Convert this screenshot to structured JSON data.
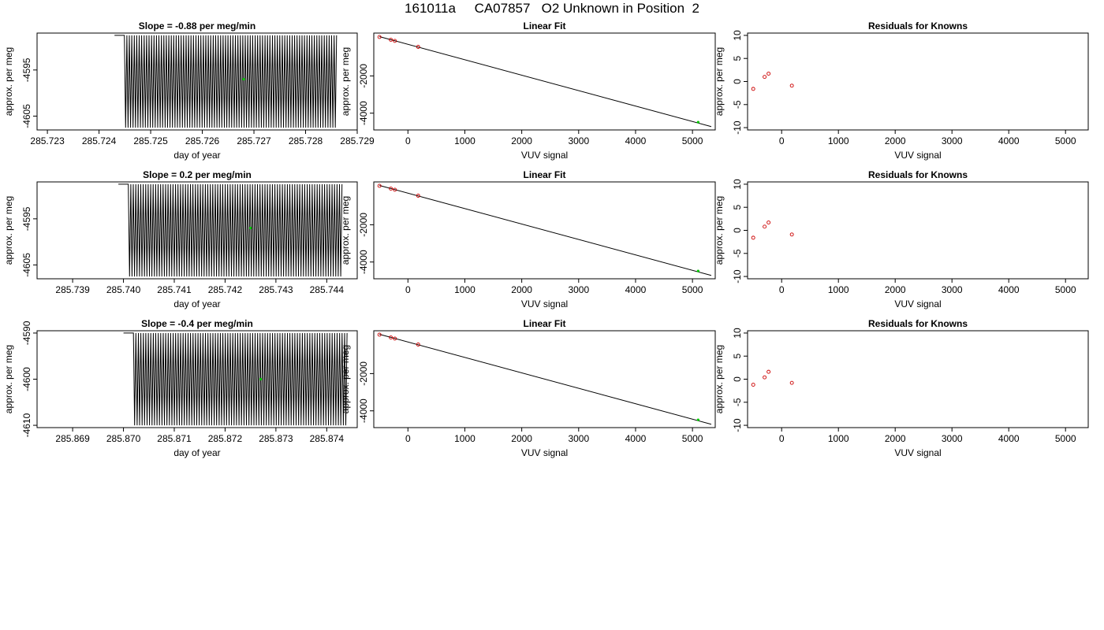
{
  "page_title": "161011a     CA07857   O2 Unknown in Position  2",
  "colors": {
    "trace": "#000000",
    "known_points": "#cc0000",
    "unknown_point": "#00cc00",
    "fit_line": "#000000"
  },
  "chart_data": [
    {
      "type": "line",
      "panel": "time-series-1",
      "title": "Slope =  -0.88  per meg/min",
      "xlabel": "day of year",
      "ylabel": "approx. per meg",
      "xticks": [
        "285.723",
        "285.724",
        "285.725",
        "285.726",
        "285.727",
        "285.728",
        "285.729"
      ],
      "yticks": [
        "-4595",
        "-4605"
      ],
      "xlim": [
        285.7228,
        285.729
      ],
      "ylim": [
        -4608,
        -4587
      ],
      "series": [
        {
          "trace": {
            "x_start": 285.7243,
            "x_end": 285.7286,
            "cycles": 90,
            "y_high": -4587.5,
            "y_low": -4607.5,
            "flat_until": 285.7245
          }
        }
      ],
      "unknown_point": {
        "x": 285.7268,
        "y": -4597
      }
    },
    {
      "type": "line",
      "panel": "time-series-2",
      "title": "Slope =  0.2  per meg/min",
      "xlabel": "day of year",
      "ylabel": "approx. per meg",
      "xticks": [
        "285.739",
        "285.740",
        "285.741",
        "285.742",
        "285.743",
        "285.744"
      ],
      "yticks": [
        "-4595",
        "-4605"
      ],
      "xlim": [
        285.7383,
        285.7446
      ],
      "ylim": [
        -4608,
        -4587
      ],
      "series": [
        {
          "trace": {
            "x_start": 285.7399,
            "x_end": 285.7443,
            "cycles": 90,
            "y_high": -4587.5,
            "y_low": -4607.5,
            "flat_until": 285.7401
          }
        }
      ],
      "unknown_point": {
        "x": 285.7425,
        "y": -4597
      }
    },
    {
      "type": "line",
      "panel": "time-series-3",
      "title": "Slope =  -0.4  per meg/min",
      "xlabel": "day of year",
      "ylabel": "approx. per meg",
      "xticks": [
        "285.869",
        "285.870",
        "285.871",
        "285.872",
        "285.873",
        "285.874"
      ],
      "yticks": [
        "-4590",
        "-4600",
        "-4610"
      ],
      "xlim": [
        285.8683,
        285.8746
      ],
      "ylim": [
        -4610.5,
        -4589.5
      ],
      "series": [
        {
          "trace": {
            "x_start": 285.87,
            "x_end": 285.8744,
            "cycles": 90,
            "y_high": -4590,
            "y_low": -4610,
            "flat_until": 285.8702
          }
        }
      ],
      "unknown_point": {
        "x": 285.8727,
        "y": -4600
      }
    },
    {
      "type": "scatter",
      "panel": "linear-fit-1",
      "title": "Linear Fit",
      "xlabel": "VUV signal",
      "ylabel": "approx. per meg",
      "xticks": [
        0,
        1000,
        2000,
        3000,
        4000,
        5000
      ],
      "yticks": [
        -2000,
        -4000
      ],
      "xlim": [
        -600,
        5400
      ],
      "ylim": [
        -4900,
        300
      ],
      "known": {
        "x": [
          -500,
          -300,
          -230,
          180
        ],
        "y": [
          90,
          -60,
          -120,
          -440
        ]
      },
      "unknown": {
        "x": [
          5100
        ],
        "y": [
          -4480
        ]
      },
      "fit_line": {
        "x": [
          -500,
          5330
        ],
        "y": [
          110,
          -4720
        ]
      }
    },
    {
      "type": "scatter",
      "panel": "linear-fit-2",
      "title": "Linear Fit",
      "xlabel": "VUV signal",
      "ylabel": "approx. per meg",
      "xticks": [
        0,
        1000,
        2000,
        3000,
        4000,
        5000
      ],
      "yticks": [
        -2000,
        -4000
      ],
      "xlim": [
        -600,
        5400
      ],
      "ylim": [
        -4900,
        300
      ],
      "known": {
        "x": [
          -500,
          -300,
          -230,
          180
        ],
        "y": [
          90,
          -60,
          -120,
          -440
        ]
      },
      "unknown": {
        "x": [
          5100
        ],
        "y": [
          -4480
        ]
      },
      "fit_line": {
        "x": [
          -500,
          5330
        ],
        "y": [
          110,
          -4720
        ]
      }
    },
    {
      "type": "scatter",
      "panel": "linear-fit-3",
      "title": "Linear Fit",
      "xlabel": "VUV signal",
      "ylabel": "approx. per meg",
      "xticks": [
        0,
        1000,
        2000,
        3000,
        4000,
        5000
      ],
      "yticks": [
        -2000,
        -4000
      ],
      "xlim": [
        -600,
        5400
      ],
      "ylim": [
        -4900,
        300
      ],
      "known": {
        "x": [
          -500,
          -300,
          -230,
          180
        ],
        "y": [
          90,
          -60,
          -120,
          -440
        ]
      },
      "unknown": {
        "x": [
          5100
        ],
        "y": [
          -4480
        ]
      },
      "fit_line": {
        "x": [
          -500,
          5330
        ],
        "y": [
          110,
          -4720
        ]
      }
    },
    {
      "type": "scatter",
      "panel": "residuals-1",
      "title": "Residuals for Knowns",
      "xlabel": "VUV signal",
      "ylabel": "approx. per meg",
      "xticks": [
        0,
        1000,
        2000,
        3000,
        4000,
        5000
      ],
      "yticks": [
        10,
        5,
        0,
        -5,
        -10
      ],
      "xlim": [
        -600,
        5400
      ],
      "ylim": [
        -10.5,
        10.5
      ],
      "known": {
        "x": [
          -500,
          -300,
          -230,
          180
        ],
        "y": [
          -1.6,
          1.0,
          1.7,
          -0.9
        ]
      }
    },
    {
      "type": "scatter",
      "panel": "residuals-2",
      "title": "Residuals for Knowns",
      "xlabel": "VUV signal",
      "ylabel": "approx. per meg",
      "xticks": [
        0,
        1000,
        2000,
        3000,
        4000,
        5000
      ],
      "yticks": [
        10,
        5,
        0,
        -5,
        -10
      ],
      "xlim": [
        -600,
        5400
      ],
      "ylim": [
        -10.5,
        10.5
      ],
      "known": {
        "x": [
          -500,
          -300,
          -230,
          180
        ],
        "y": [
          -1.6,
          0.8,
          1.7,
          -0.9
        ]
      }
    },
    {
      "type": "scatter",
      "panel": "residuals-3",
      "title": "Residuals for Knowns",
      "xlabel": "VUV signal",
      "ylabel": "approx. per meg",
      "xticks": [
        0,
        1000,
        2000,
        3000,
        4000,
        5000
      ],
      "yticks": [
        10,
        5,
        0,
        -5,
        -10
      ],
      "xlim": [
        -600,
        5400
      ],
      "ylim": [
        -10.5,
        10.5
      ],
      "known": {
        "x": [
          -500,
          -300,
          -230,
          180
        ],
        "y": [
          -1.2,
          0.4,
          1.6,
          -0.8
        ]
      }
    }
  ]
}
